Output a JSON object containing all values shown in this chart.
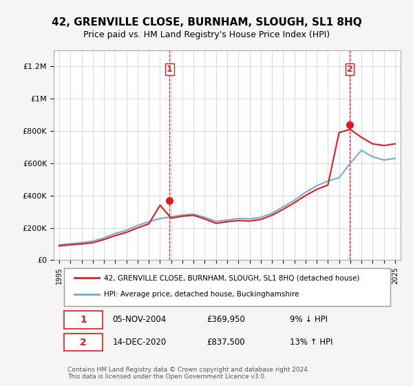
{
  "title": "42, GRENVILLE CLOSE, BURNHAM, SLOUGH, SL1 8HQ",
  "subtitle": "Price paid vs. HM Land Registry's House Price Index (HPI)",
  "legend_line1": "42, GRENVILLE CLOSE, BURNHAM, SLOUGH, SL1 8HQ (detached house)",
  "legend_line2": "HPI: Average price, detached house, Buckinghamshire",
  "footer": "Contains HM Land Registry data © Crown copyright and database right 2024.\nThis data is licensed under the Open Government Licence v3.0.",
  "sale1_label": "1",
  "sale1_date": "05-NOV-2004",
  "sale1_price": "£369,950",
  "sale1_hpi": "9% ↓ HPI",
  "sale2_label": "2",
  "sale2_date": "14-DEC-2020",
  "sale2_price": "£837,500",
  "sale2_hpi": "13% ↑ HPI",
  "sale1_x": 2004.85,
  "sale1_y": 369950,
  "sale2_x": 2020.95,
  "sale2_y": 837500,
  "hpi_color": "#6baed6",
  "price_color": "#e31a1c",
  "background_color": "#f5f5f5",
  "plot_bg_color": "#ffffff",
  "grid_color": "#cccccc",
  "ylim": [
    0,
    1300000
  ],
  "xlim": [
    1994.5,
    2025.5
  ],
  "yticks": [
    0,
    200000,
    400000,
    600000,
    800000,
    1000000,
    1200000
  ],
  "ytick_labels": [
    "£0",
    "£200K",
    "£400K",
    "£600K",
    "£800K",
    "£1M",
    "£1.2M"
  ],
  "xticks": [
    1995,
    1996,
    1997,
    1998,
    1999,
    2000,
    2001,
    2002,
    2003,
    2004,
    2005,
    2006,
    2007,
    2008,
    2009,
    2010,
    2011,
    2012,
    2013,
    2014,
    2015,
    2016,
    2017,
    2018,
    2019,
    2020,
    2021,
    2022,
    2023,
    2024,
    2025
  ],
  "hpi_years": [
    1995,
    1996,
    1997,
    1998,
    1999,
    2000,
    2001,
    2002,
    2003,
    2004,
    2005,
    2006,
    2007,
    2008,
    2009,
    2010,
    2011,
    2012,
    2013,
    2014,
    2015,
    2016,
    2017,
    2018,
    2019,
    2020,
    2021,
    2022,
    2023,
    2024,
    2025
  ],
  "hpi_values": [
    95000,
    102000,
    108000,
    118000,
    138000,
    165000,
    185000,
    215000,
    238000,
    258000,
    268000,
    280000,
    285000,
    265000,
    240000,
    248000,
    258000,
    255000,
    265000,
    290000,
    330000,
    370000,
    420000,
    460000,
    490000,
    510000,
    600000,
    680000,
    640000,
    620000,
    630000
  ],
  "price_years": [
    1995,
    1996,
    1997,
    1998,
    1999,
    2000,
    2001,
    2002,
    2003,
    2004,
    2005,
    2006,
    2007,
    2008,
    2009,
    2010,
    2011,
    2012,
    2013,
    2014,
    2015,
    2016,
    2017,
    2018,
    2019,
    2020,
    2021,
    2022,
    2023,
    2024,
    2025
  ],
  "price_values": [
    88000,
    95000,
    100000,
    108000,
    128000,
    152000,
    172000,
    200000,
    225000,
    340000,
    260000,
    272000,
    278000,
    255000,
    228000,
    238000,
    245000,
    242000,
    252000,
    278000,
    315000,
    355000,
    400000,
    438000,
    465000,
    790000,
    810000,
    760000,
    720000,
    710000,
    720000
  ],
  "vline1_x": 2004.85,
  "vline2_x": 2020.95
}
